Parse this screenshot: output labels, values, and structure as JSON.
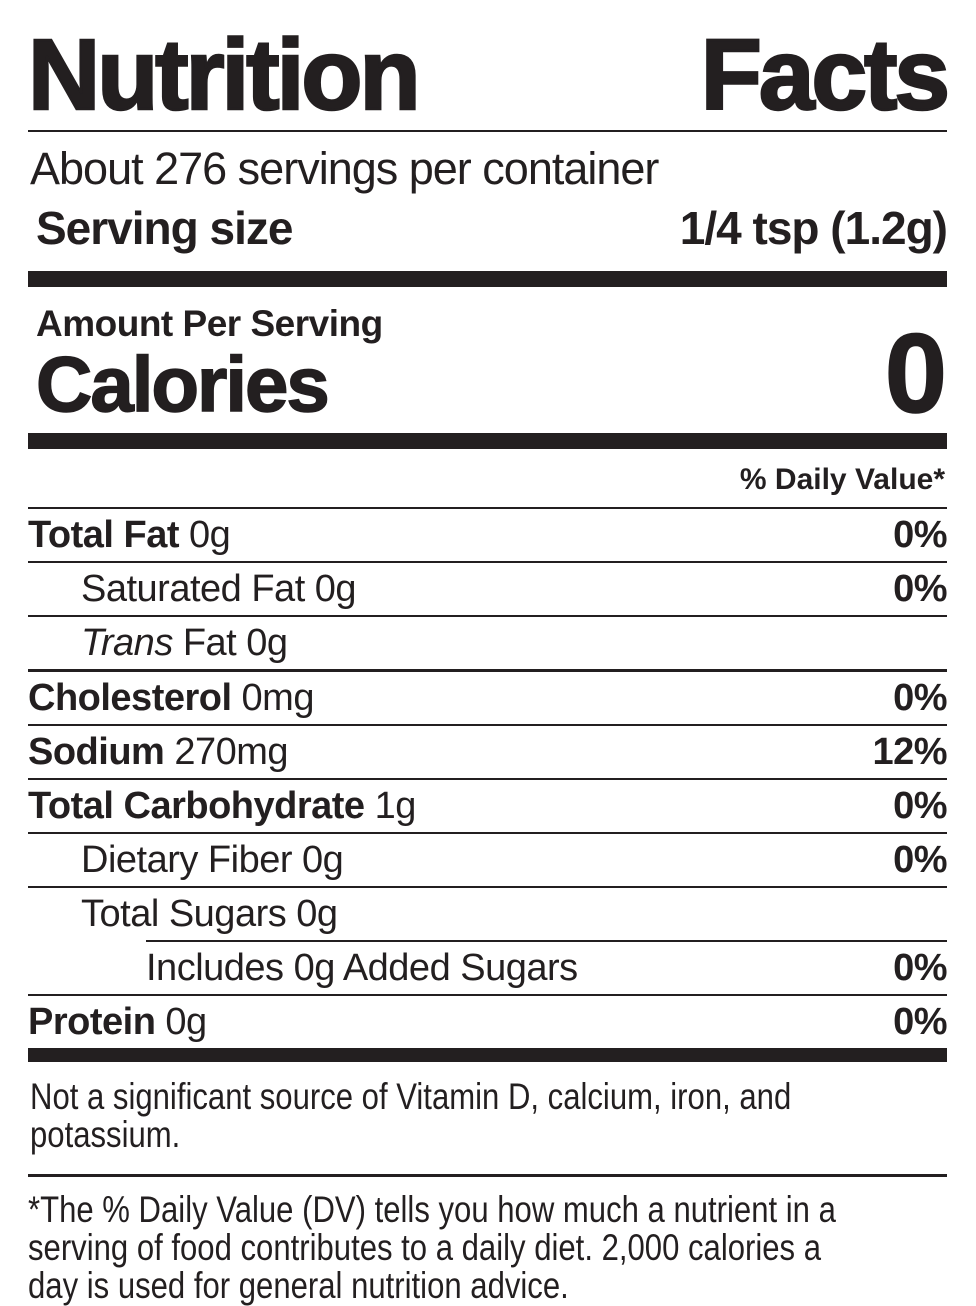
{
  "colors": {
    "ink": "#231f20",
    "paper": "#ffffff"
  },
  "header": {
    "title": "Nutrition Facts",
    "title_word1": "Nutrition",
    "title_word2": "Facts",
    "servings_per_container": "About 276 servings per container",
    "serving_size_label": "Serving size",
    "serving_size_value": "1/4 tsp (1.2g)"
  },
  "calories": {
    "amount_per_serving_label": "Amount Per Serving",
    "label": "Calories",
    "value": "0"
  },
  "daily_value_header": "% Daily Value*",
  "nutrients": [
    {
      "name": "Total Fat",
      "amount": "0g",
      "dv": "0%"
    },
    {
      "name": "Saturated Fat",
      "amount": "0g",
      "dv": "0%"
    },
    {
      "name": "Trans",
      "amount": "Fat 0g",
      "dv": ""
    },
    {
      "name": "Cholesterol",
      "amount": "0mg",
      "dv": "0%"
    },
    {
      "name": "Sodium",
      "amount": "270mg",
      "dv": "12%"
    },
    {
      "name": "Total Carbohydrate",
      "amount": "1g",
      "dv": "0%"
    },
    {
      "name": "Dietary Fiber",
      "amount": "0g",
      "dv": "0%"
    },
    {
      "name": "Total Sugars",
      "amount": "0g",
      "dv": ""
    },
    {
      "name": "Includes 0g Added Sugars",
      "amount": "",
      "dv": "0%"
    },
    {
      "name": "Protein",
      "amount": "0g",
      "dv": "0%"
    }
  ],
  "notes": {
    "not_significant": "Not a significant source of Vitamin D, calcium, iron, and potassium.",
    "not_significant_line1": "Not a significant source of Vitamin D, calcium, iron, and",
    "not_significant_line2": "potassium.",
    "footnote": "*The % Daily Value (DV) tells you how much a nutrient in a serving of food contributes to a daily diet. 2,000 calories a day is used for general nutrition advice.",
    "footnote_line1": "*The % Daily Value (DV) tells you how much a nutrient in a",
    "footnote_line2": "serving of food contributes to a daily diet. 2,000 calories a",
    "footnote_line3": "day is used for general nutrition advice."
  }
}
